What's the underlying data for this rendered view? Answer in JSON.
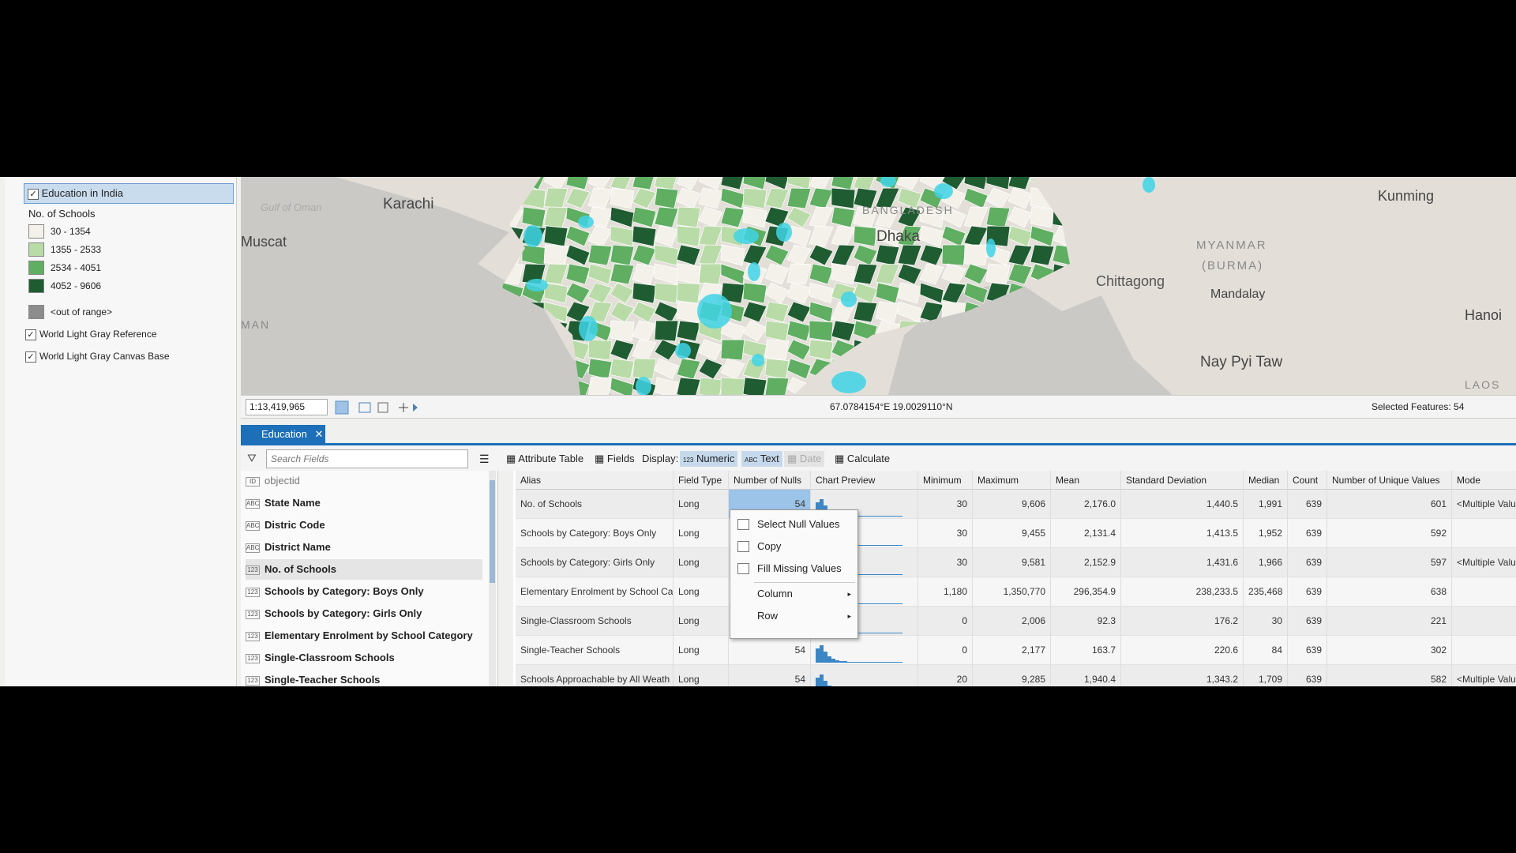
{
  "contents": {
    "layer": "Education in India",
    "legend_title": "No. of Schools",
    "classes": [
      {
        "label": "30 - 1354",
        "color": "#f3f1ea"
      },
      {
        "label": "1355 - 2533",
        "color": "#b9dba8"
      },
      {
        "label": "2534 - 4051",
        "color": "#5fae62"
      },
      {
        "label": "4052 - 9606",
        "color": "#1f5c31"
      }
    ],
    "out_of_range": {
      "label": "<out of range>",
      "color": "#8c8c8c"
    },
    "basemaps": [
      "World Light Gray Reference",
      "World Light Gray Canvas Base"
    ]
  },
  "map": {
    "labels": [
      "Gulf of Oman",
      "Karachi",
      "Muscat",
      "MAN",
      "BANGLADESH",
      "Dhaka",
      "MYANMAR",
      "(BURMA)",
      "Chittagong",
      "Mandalay",
      "Kunming",
      "Hanoi",
      "Nay Pyi Taw",
      "LAOS"
    ],
    "selection_color": "#3fd3e6",
    "status": {
      "scale": "1:13,419,965",
      "coordinates": "67.0784154°E 19.0029110°N",
      "selected": "Selected Features: 54"
    }
  },
  "view": {
    "tab": "Education",
    "search_placeholder": "Search Fields",
    "toolbar": {
      "attribute_table": "Attribute Table",
      "fields": "Fields",
      "display": "Display:",
      "numeric": "Numeric",
      "text": "Text",
      "date": "Date",
      "calculate": "Calculate"
    }
  },
  "fields": [
    {
      "icon": "ID",
      "name": "objectid"
    },
    {
      "icon": "ABC",
      "name": "State Name"
    },
    {
      "icon": "ABC",
      "name": "Distric Code"
    },
    {
      "icon": "ABC",
      "name": "District Name"
    },
    {
      "icon": "123",
      "name": "No. of Schools"
    },
    {
      "icon": "123",
      "name": "Schools by Category: Boys Only"
    },
    {
      "icon": "123",
      "name": "Schools by Category: Girls Only"
    },
    {
      "icon": "123",
      "name": "Elementary Enrolment by School Category"
    },
    {
      "icon": "123",
      "name": "Single-Classroom Schools"
    },
    {
      "icon": "123",
      "name": "Single-Teacher Schools"
    }
  ],
  "table": {
    "columns": [
      "Alias",
      "Field Type",
      "Number of Nulls",
      "Chart Preview",
      "Minimum",
      "Maximum",
      "Mean",
      "Standard Deviation",
      "Median",
      "Count",
      "Number of Unique Values",
      "Mode"
    ],
    "rows": [
      [
        "No. of Schools",
        "Long",
        "54",
        null,
        "30",
        "9,606",
        "2,176.0",
        "1,440.5",
        "1,991",
        "639",
        "601",
        "<Multiple Values>"
      ],
      [
        "Schools by Category: Boys Only",
        "Long",
        null,
        null,
        "30",
        "9,455",
        "2,131.4",
        "1,413.5",
        "1,952",
        "639",
        "592",
        null
      ],
      [
        "Schools by Category: Girls Only",
        "Long",
        null,
        null,
        "30",
        "9,581",
        "2,152.9",
        "1,431.6",
        "1,966",
        "639",
        "597",
        "<Multiple Values>"
      ],
      [
        "Elementary Enrolment by School Cat",
        "Long",
        null,
        null,
        "1,180",
        "1,350,770",
        "296,354.9",
        "238,233.5",
        "235,468",
        "639",
        "638",
        null
      ],
      [
        "Single-Classroom Schools",
        "Long",
        null,
        null,
        "0",
        "2,006",
        "92.3",
        "176.2",
        "30",
        "639",
        "221",
        null
      ],
      [
        "Single-Teacher Schools",
        "Long",
        "54",
        null,
        "0",
        "2,177",
        "163.7",
        "220.6",
        "84",
        "639",
        "302",
        null
      ],
      [
        "Schools Approachable by All Weath",
        "Long",
        "54",
        null,
        "20",
        "9,285",
        "1,940.4",
        "1,343.2",
        "1,709",
        "639",
        "582",
        "<Multiple Values>"
      ]
    ]
  },
  "context_menu": [
    "Select Null Values",
    "Copy",
    "Fill Missing Values",
    "Column",
    "Row"
  ]
}
